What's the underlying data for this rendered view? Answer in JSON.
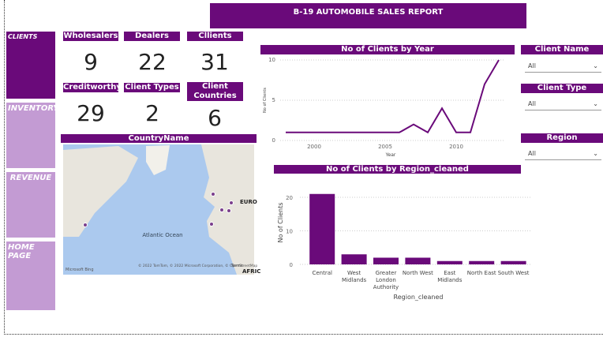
{
  "header": {
    "title": "B-19 AUTOMOBILE SALES REPORT"
  },
  "nav": [
    "CLIENTS",
    "INVENTORY",
    "REVENUE",
    "HOME PAGE"
  ],
  "cards": [
    {
      "label": "Wholesalers",
      "value": "9"
    },
    {
      "label": "Dealers",
      "value": "22"
    },
    {
      "label": "Cllients",
      "value": "31"
    },
    {
      "label": "Creditworthy",
      "value": "29"
    },
    {
      "label": "Client Types",
      "value": "2"
    },
    {
      "label": "Client Countries",
      "value": "6"
    }
  ],
  "map": {
    "title": "CountryName",
    "ocean": "Atlantic Ocean",
    "europe": "EURO",
    "africa": "AFRIC",
    "copyright": "© 2022 TomTom, © 2022 Microsoft Corporation, © OpenStreetMap",
    "terms": "Terms",
    "brand": "Microsoft Bing"
  },
  "slicers": [
    {
      "title": "Client Name",
      "selection": "All"
    },
    {
      "title": "Client Type",
      "selection": "All"
    },
    {
      "title": "Region",
      "selection": "All"
    }
  ],
  "chart_data": [
    {
      "type": "line",
      "title": "No of Clients by Year",
      "x_label": "Year",
      "y_label": "No of Clients",
      "color": "#6a0a7a",
      "grid": true,
      "x": [
        1998,
        2006,
        2007,
        2008,
        2009,
        2010,
        2011,
        2012,
        2013
      ],
      "values": [
        1,
        1,
        2,
        1,
        4,
        1,
        1,
        7,
        10
      ],
      "xlim": [
        1998,
        2013
      ],
      "xticks": [
        2000,
        2005,
        2010
      ],
      "ylim": [
        0,
        10
      ],
      "yticks": [
        0,
        5,
        10
      ]
    },
    {
      "type": "bar",
      "title": "No of Clients by Region_cleaned",
      "x_label": "Region_cleaned",
      "y_label": "No of Clients",
      "color": "#6a0a7a",
      "grid": true,
      "categories": [
        "Central",
        "West Midlands",
        "Greater London Authority",
        "North West",
        "East Midlands",
        "North East",
        "South West"
      ],
      "values": [
        21,
        3,
        2,
        2,
        1,
        1,
        1
      ],
      "ylim": [
        0,
        22
      ],
      "yticks": [
        0,
        10,
        20
      ]
    }
  ]
}
